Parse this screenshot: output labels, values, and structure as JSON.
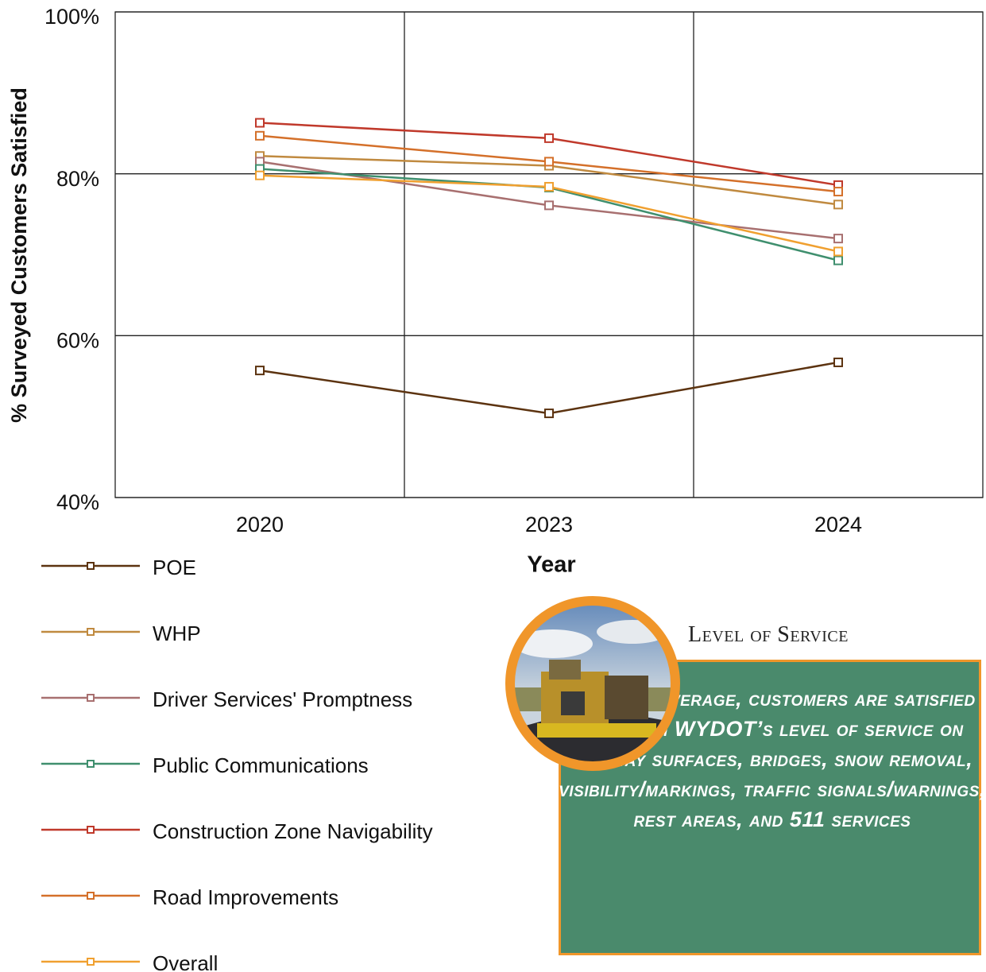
{
  "chart_data": {
    "type": "line",
    "x_label": "Year",
    "y_label": "% Surveyed Customers Satisfied",
    "categories": [
      "2020",
      "2023",
      "2024"
    ],
    "ylim": [
      40,
      100
    ],
    "yticks": [
      {
        "value": 40,
        "label": "40%"
      },
      {
        "value": 60,
        "label": "60%"
      },
      {
        "value": 80,
        "label": "80%"
      },
      {
        "value": 100,
        "label": "100%"
      }
    ],
    "grid": true,
    "series": [
      {
        "name": "POE",
        "color": "#5c3310",
        "values": [
          55.7,
          50.4,
          56.7
        ]
      },
      {
        "name": "WHP",
        "color": "#c08a40",
        "values": [
          82.2,
          81.0,
          76.2
        ]
      },
      {
        "name": "Driver Services' Promptness",
        "color": "#a87070",
        "values": [
          81.5,
          76.1,
          72.0
        ]
      },
      {
        "name": "Public Communications",
        "color": "#3f8f6e",
        "values": [
          80.6,
          78.3,
          69.3
        ]
      },
      {
        "name": "Construction Zone Navigability",
        "color": "#c0392b",
        "values": [
          86.3,
          84.4,
          78.6
        ]
      },
      {
        "name": "Road Improvements",
        "color": "#d4702a",
        "values": [
          84.7,
          81.5,
          77.8
        ]
      },
      {
        "name": "Overall",
        "color": "#f0a030",
        "values": [
          79.8,
          78.4,
          70.4
        ]
      }
    ]
  },
  "callout": {
    "title": "Level of Service",
    "text": "On average, customers are satisfied with WYDOT’s level of service on highway surfaces, bridges, snow removal, visibility/markings, traffic signals/warnings, rest areas, and 511 services"
  }
}
